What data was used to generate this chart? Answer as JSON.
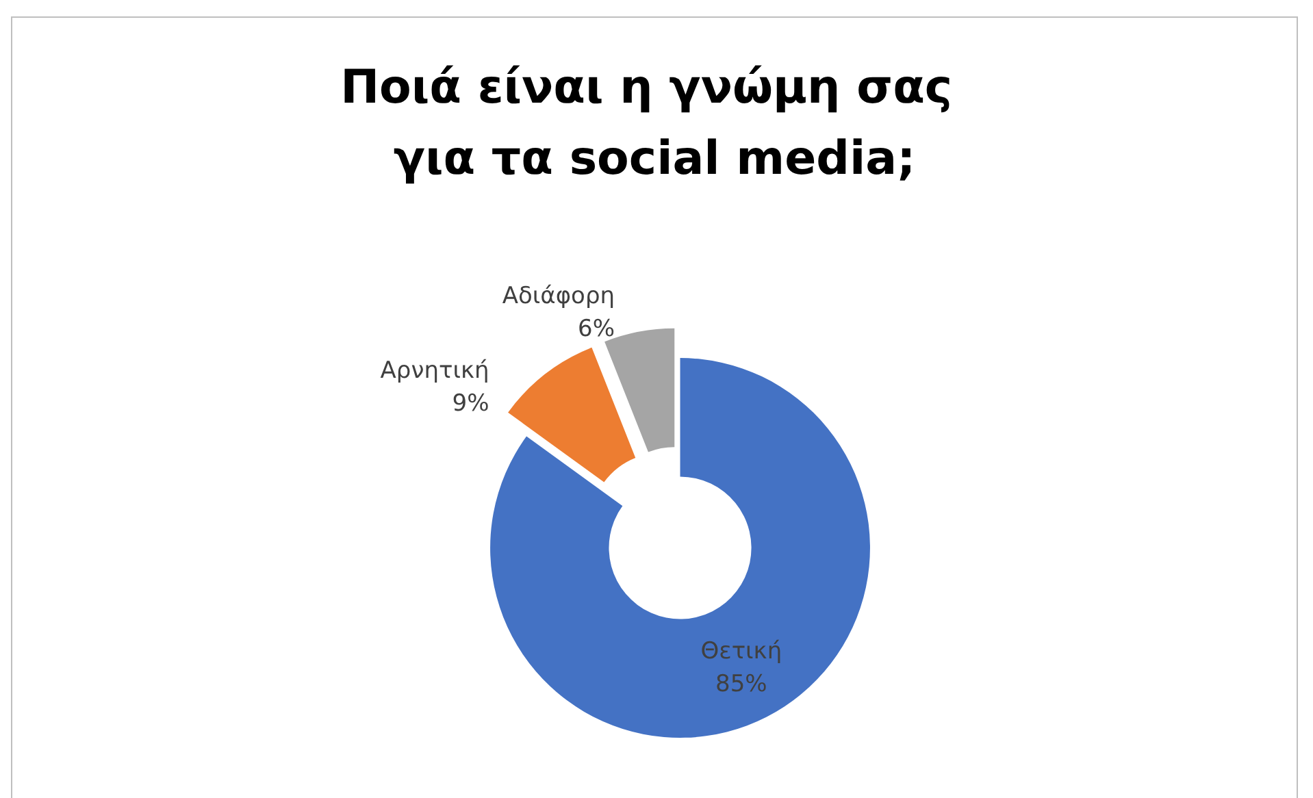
{
  "chart_data": {
    "type": "donut",
    "title": "Ποιά είναι η γνώμη σας για τα social media;",
    "categories": [
      "Θετική",
      "Αρνητική",
      "Αδιάφορη"
    ],
    "values": [
      85,
      9,
      6
    ],
    "value_labels": [
      "85%",
      "9%",
      "6%"
    ],
    "colors": [
      "#4472c4",
      "#ed7d31",
      "#a5a5a5"
    ],
    "legend": false
  }
}
